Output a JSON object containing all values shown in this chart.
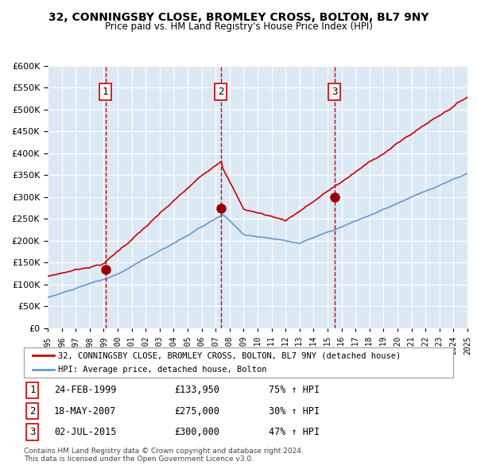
{
  "title1": "32, CONNINGSBY CLOSE, BROMLEY CROSS, BOLTON, BL7 9NY",
  "title2": "Price paid vs. HM Land Registry's House Price Index (HPI)",
  "legend_line1": "32, CONNINGSBY CLOSE, BROMLEY CROSS, BOLTON, BL7 9NY (detached house)",
  "legend_line2": "HPI: Average price, detached house, Bolton",
  "sale1": {
    "label": "1",
    "date_str": "24-FEB-1999",
    "year": 1999.13,
    "price": 133950,
    "pct": "75%",
    "dir": "↑"
  },
  "sale2": {
    "label": "2",
    "date_str": "18-MAY-2007",
    "year": 2007.37,
    "price": 275000,
    "pct": "30%",
    "dir": "↑"
  },
  "sale3": {
    "label": "3",
    "date_str": "02-JUL-2015",
    "year": 2015.5,
    "price": 300000,
    "pct": "47%",
    "dir": "↑"
  },
  "footer1": "Contains HM Land Registry data © Crown copyright and database right 2024.",
  "footer2": "This data is licensed under the Open Government Licence v3.0.",
  "ylim": [
    0,
    600000
  ],
  "yticks": [
    0,
    50000,
    100000,
    150000,
    200000,
    250000,
    300000,
    350000,
    400000,
    450000,
    500000,
    550000,
    600000
  ],
  "bg_color": "#dce9f5",
  "grid_color": "#ffffff",
  "red_line_color": "#cc0000",
  "blue_line_color": "#6699cc",
  "red_dot_color": "#990000",
  "dashed_color": "#cc0000"
}
